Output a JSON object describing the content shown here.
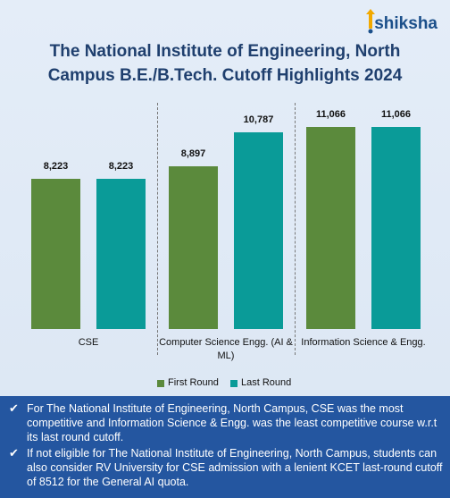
{
  "logo": "shiksha",
  "chart_data": {
    "type": "bar",
    "title": "The National Institute of Engineering, North Campus B.E./B.Tech. Cutoff Highlights 2024",
    "categories": [
      "CSE",
      "Computer Science Engg. (AI & ML)",
      "Information Science & Engg."
    ],
    "series": [
      {
        "name": "First Round",
        "color": "#5b8a3c",
        "values": [
          8223,
          8897,
          11066
        ],
        "value_labels": [
          "8,223",
          "8,897",
          "11,066"
        ]
      },
      {
        "name": "Last Round",
        "color": "#0a9b98",
        "values": [
          8223,
          10787,
          11066
        ],
        "value_labels": [
          "8,223",
          "10,787",
          "11,066"
        ]
      }
    ],
    "legend": "bottom"
  },
  "notes": [
    "For The National Institute of Engineering, North Campus, CSE was the most competitive and Information Science & Engg. was the least competitive course w.r.t its last round cutoff.",
    "If not eligible for The National Institute of Engineering, North Campus, students can also consider RV University for CSE admission with a lenient KCET last-round cutoff of 8512 for the General AI quota."
  ]
}
